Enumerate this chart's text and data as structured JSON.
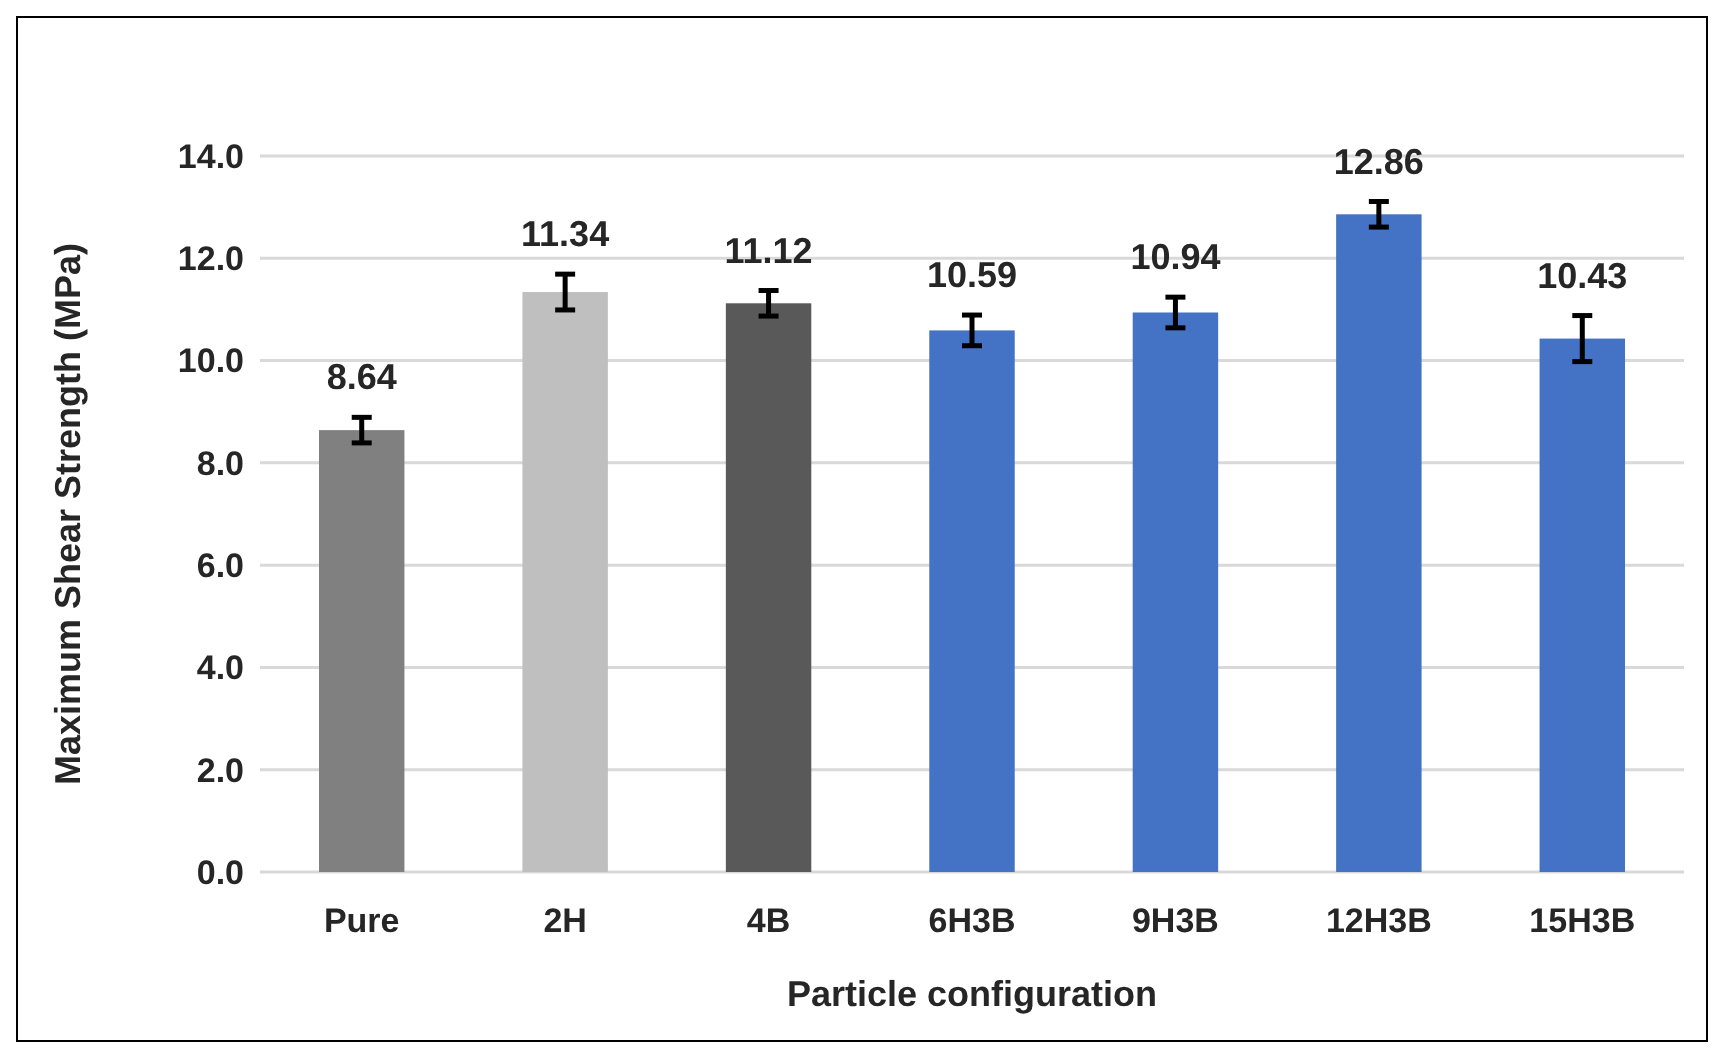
{
  "chart_data": {
    "type": "bar",
    "xlabel": "Particle configuration",
    "ylabel": "Maximum Shear Strength (MPa)",
    "categories": [
      "Pure",
      "2H",
      "4B",
      "6H3B",
      "9H3B",
      "12H3B",
      "15H3B"
    ],
    "values": [
      8.64,
      11.34,
      11.12,
      10.59,
      10.94,
      12.86,
      10.43
    ],
    "colors": [
      "#808080",
      "#bfbfbf",
      "#595959",
      "#4472c4",
      "#4472c4",
      "#4472c4",
      "#4472c4"
    ],
    "errors": [
      0.25,
      0.35,
      0.25,
      0.3,
      0.3,
      0.25,
      0.45
    ],
    "data_labels": true,
    "grid": "y",
    "ylim": [
      0,
      14
    ],
    "yticks": [
      {
        "value": 0,
        "label": "0.0"
      },
      {
        "value": 2,
        "label": "2.0"
      },
      {
        "value": 4,
        "label": "4.0"
      },
      {
        "value": 6,
        "label": "6.0"
      },
      {
        "value": 8,
        "label": "8.0"
      },
      {
        "value": 10,
        "label": "10.0"
      },
      {
        "value": 12,
        "label": "12.0"
      },
      {
        "value": 14,
        "label": "14.0"
      }
    ]
  }
}
